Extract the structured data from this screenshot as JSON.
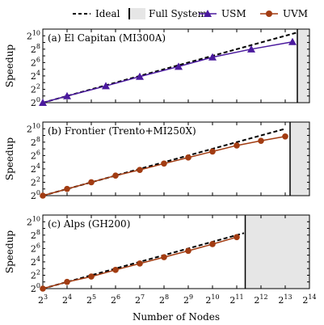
{
  "legend": {
    "ideal": "Ideal",
    "full_system": "Full System",
    "usm": "USM",
    "uvm": "UVM"
  },
  "xlabel": "Number of Nodes",
  "ylabel": "Speedup",
  "colors": {
    "usm": "#4B1A9E",
    "uvm": "#A23C12",
    "ideal": "#000000",
    "full_system_fill": "#e6e6e6"
  },
  "chart_data": [
    {
      "type": "line",
      "title": "(a) El Capitan (MI300A)",
      "xscale": "log2",
      "yscale": "log2",
      "xlim_exp": [
        3,
        14
      ],
      "ylim_exp": [
        0,
        11
      ],
      "full_system_nodes_exp": 13.5,
      "ideal": {
        "x_exp": [
          3,
          13.5
        ],
        "y_exp": [
          0,
          10.5
        ]
      },
      "series": [
        {
          "name": "USM",
          "marker": "triangle",
          "x_exp": [
            3,
            4,
            5.6,
            7,
            8.6,
            10,
            11.6,
            13.3
          ],
          "y_exp": [
            0,
            1,
            2.5,
            3.9,
            5.4,
            6.8,
            8.0,
            9.1
          ]
        }
      ]
    },
    {
      "type": "line",
      "title": "(b) Frontier (Trento+MI250X)",
      "xscale": "log2",
      "yscale": "log2",
      "xlim_exp": [
        3,
        14
      ],
      "ylim_exp": [
        0,
        11
      ],
      "full_system_nodes_exp": 13.2,
      "ideal": {
        "x_exp": [
          3,
          13.0
        ],
        "y_exp": [
          0,
          10.0
        ]
      },
      "series": [
        {
          "name": "UVM",
          "marker": "circle",
          "x_exp": [
            3,
            4,
            5,
            6,
            7,
            8,
            9,
            10,
            11,
            12,
            13
          ],
          "y_exp": [
            0,
            1,
            2,
            3,
            3.85,
            4.8,
            5.7,
            6.6,
            7.5,
            8.2,
            8.85
          ]
        }
      ]
    },
    {
      "type": "line",
      "title": "(c) Alps (GH200)",
      "xscale": "log2",
      "yscale": "log2",
      "xlim_exp": [
        3,
        14
      ],
      "ylim_exp": [
        0,
        11
      ],
      "full_system_nodes_exp": 11.35,
      "ideal": {
        "x_exp": [
          3,
          11.3
        ],
        "y_exp": [
          0,
          8.3
        ]
      },
      "series": [
        {
          "name": "UVM",
          "marker": "circle",
          "x_exp": [
            3,
            4,
            5,
            6,
            7,
            8,
            9,
            10,
            11
          ],
          "y_exp": [
            0,
            1,
            1.8,
            2.8,
            3.75,
            4.7,
            5.65,
            6.65,
            7.7
          ]
        }
      ]
    }
  ]
}
